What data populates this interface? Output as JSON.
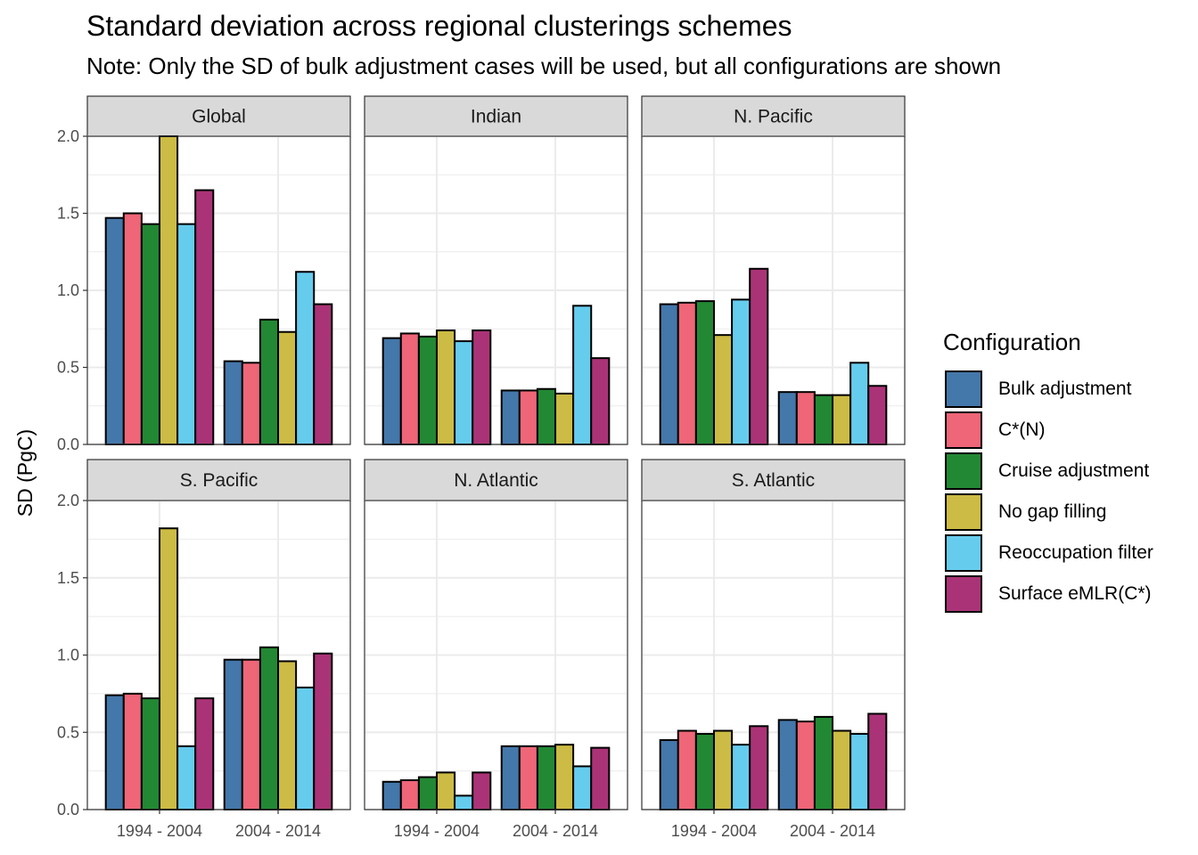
{
  "title": "Standard deviation across regional clusterings schemes",
  "subtitle": "Note: Only the SD of bulk adjustment cases will be used, but all configurations are shown",
  "legend": {
    "title": "Configuration",
    "items": [
      {
        "label": "Bulk adjustment",
        "color": "#4477AA"
      },
      {
        "label": "C*(N)",
        "color": "#EE6677"
      },
      {
        "label": "Cruise adjustment",
        "color": "#228833"
      },
      {
        "label": "No gap filling",
        "color": "#CCBB44"
      },
      {
        "label": "Reoccupation filter",
        "color": "#66CCEE"
      },
      {
        "label": "Surface eMLR(C*)",
        "color": "#AA3377"
      }
    ]
  },
  "chart_data": {
    "type": "bar",
    "layout": "faceted 2x3, dodged bars",
    "ylabel": "SD (PgC)",
    "xlabel": "",
    "ylim": [
      0,
      2.0
    ],
    "yticks": [
      "0.0",
      "0.5",
      "1.0",
      "1.5",
      "2.0"
    ],
    "categories": [
      "1994 - 2004",
      "2004 - 2014"
    ],
    "series_names": [
      "Bulk adjustment",
      "C*(N)",
      "Cruise adjustment",
      "No gap filling",
      "Reoccupation filter",
      "Surface eMLR(C*)"
    ],
    "grid": true,
    "legend_position": "right",
    "facets": [
      {
        "name": "Global",
        "values": [
          [
            1.47,
            1.5,
            1.43,
            2.0,
            1.43,
            1.65
          ],
          [
            0.54,
            0.53,
            0.81,
            0.73,
            1.12,
            0.91
          ]
        ]
      },
      {
        "name": "Indian",
        "values": [
          [
            0.69,
            0.72,
            0.7,
            0.74,
            0.67,
            0.74
          ],
          [
            0.35,
            0.35,
            0.36,
            0.33,
            0.9,
            0.56
          ]
        ]
      },
      {
        "name": "N. Pacific",
        "values": [
          [
            0.91,
            0.92,
            0.93,
            0.71,
            0.94,
            1.14
          ],
          [
            0.34,
            0.34,
            0.32,
            0.32,
            0.53,
            0.38
          ]
        ]
      },
      {
        "name": "S. Pacific",
        "values": [
          [
            0.74,
            0.75,
            0.72,
            1.82,
            0.41,
            0.72
          ],
          [
            0.97,
            0.97,
            1.05,
            0.96,
            0.79,
            1.01
          ]
        ]
      },
      {
        "name": "N. Atlantic",
        "values": [
          [
            0.18,
            0.19,
            0.21,
            0.24,
            0.09,
            0.24
          ],
          [
            0.41,
            0.41,
            0.41,
            0.42,
            0.28,
            0.4
          ]
        ]
      },
      {
        "name": "S. Atlantic",
        "values": [
          [
            0.45,
            0.51,
            0.49,
            0.51,
            0.42,
            0.54
          ],
          [
            0.58,
            0.57,
            0.6,
            0.51,
            0.49,
            0.62
          ]
        ]
      }
    ]
  }
}
